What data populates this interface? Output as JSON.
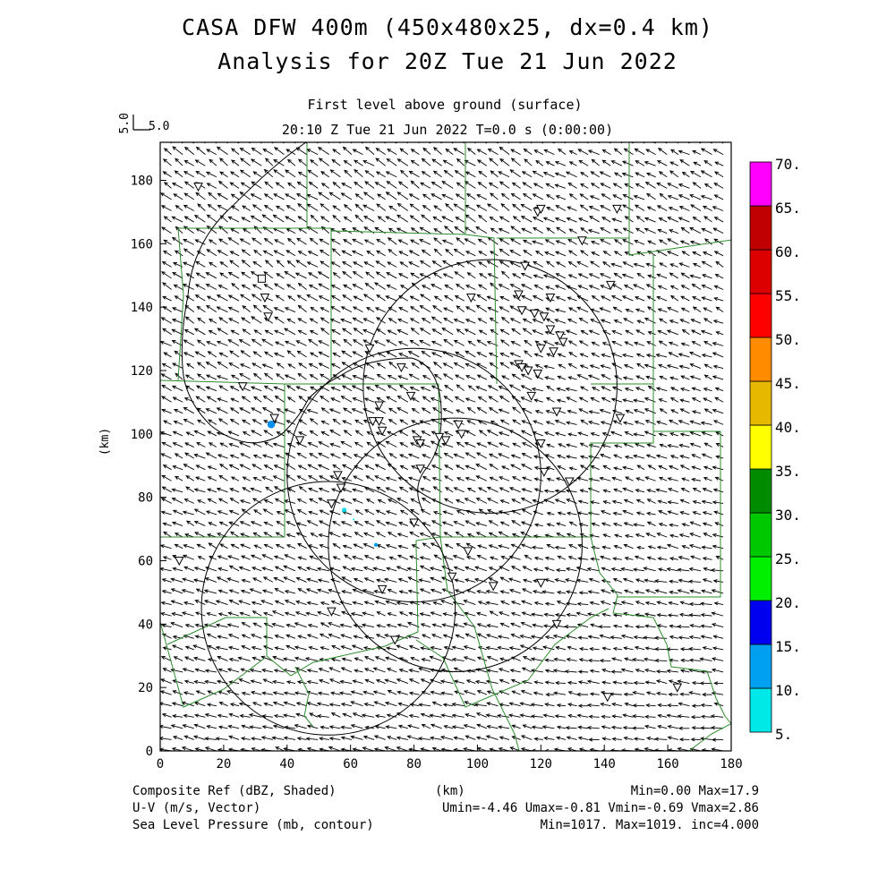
{
  "title_line1": "CASA DFW 400m (450x480x25, dx=0.4 km)",
  "title_line2": "Analysis for 20Z Tue 21 Jun 2022",
  "subtitle_line1": "First level above ground (surface)",
  "subtitle_line2": "20:10 Z Tue 21 Jun 2022    T=0.0 s (0:00:00)",
  "ref_vector": {
    "label_vertical": "5.0",
    "label": "5.0"
  },
  "axes": {
    "x_ticks": [
      "0",
      "20",
      "40",
      "60",
      "80",
      "100",
      "120",
      "140",
      "160",
      "180"
    ],
    "y_ticks": [
      "0",
      "20",
      "40",
      "60",
      "80",
      "100",
      "120",
      "140",
      "160",
      "180"
    ],
    "x_label": "(km)",
    "y_label": "(km)",
    "xlim": [
      0,
      180
    ],
    "ylim": [
      0,
      192
    ]
  },
  "colorbar": {
    "labels": [
      "5.",
      "10.",
      "15.",
      "20.",
      "25.",
      "30.",
      "35.",
      "40.",
      "45.",
      "50.",
      "55.",
      "60.",
      "65.",
      "70."
    ],
    "colors": [
      "#00e8e8",
      "#00a0f0",
      "#0000f0",
      "#00f000",
      "#00c800",
      "#008c00",
      "#ffff00",
      "#e6b800",
      "#ff8c00",
      "#ff0000",
      "#dd0000",
      "#c00000",
      "#ff00ff"
    ]
  },
  "footer": {
    "left1": "Composite Ref (dBZ, Shaded)",
    "left2": "U-V (m/s, Vector)",
    "left3": "Sea Level Pressure (mb, contour)",
    "center": "(km)",
    "right1": "Min=0.00 Max=17.9",
    "right2": "Umin=-4.46 Umax=-0.81 Vmin=-0.69 Vmax=2.86",
    "right3": "Min=1017. Max=1019. inc=4.000"
  },
  "chart_data": {
    "type": "map",
    "radar_rings_km": [
      {
        "cx": 80,
        "cy": 87,
        "r": 40
      },
      {
        "cx": 104,
        "cy": 115,
        "r": 40
      },
      {
        "cx": 93,
        "cy": 65,
        "r": 40
      },
      {
        "cx": 53,
        "cy": 45,
        "r": 40
      }
    ],
    "reflectivity_echoes_km": [
      {
        "x": 35,
        "y": 103,
        "r": 1.2,
        "color": "#0090f0"
      },
      {
        "x": 58,
        "y": 76,
        "r": 0.7,
        "color": "#00d8e8"
      },
      {
        "x": 68,
        "y": 65,
        "r": 0.6,
        "color": "#00a0f0"
      },
      {
        "x": 61,
        "y": 73,
        "r": 0.3,
        "color": "#00e8e8"
      }
    ],
    "stations_km": [
      [
        12,
        178
      ],
      [
        119,
        170
      ],
      [
        120,
        171
      ],
      [
        144,
        171
      ],
      [
        133,
        161
      ],
      [
        142,
        147
      ],
      [
        33,
        143
      ],
      [
        34,
        137
      ],
      [
        115,
        153
      ],
      [
        98,
        143
      ],
      [
        113,
        144
      ],
      [
        123,
        143
      ],
      [
        114,
        139
      ],
      [
        118,
        138
      ],
      [
        121,
        137
      ],
      [
        123,
        133
      ],
      [
        126,
        131
      ],
      [
        127,
        129
      ],
      [
        120,
        127
      ],
      [
        124,
        126
      ],
      [
        66,
        127
      ],
      [
        76,
        121
      ],
      [
        113,
        122
      ],
      [
        114,
        121
      ],
      [
        116,
        120
      ],
      [
        119,
        119
      ],
      [
        79,
        112
      ],
      [
        117,
        112
      ],
      [
        26,
        115
      ],
      [
        36,
        105
      ],
      [
        69,
        109
      ],
      [
        67,
        104
      ],
      [
        69,
        104
      ],
      [
        70,
        101
      ],
      [
        125,
        107
      ],
      [
        145,
        105
      ],
      [
        88,
        99
      ],
      [
        94,
        103
      ],
      [
        95,
        100
      ],
      [
        90,
        98
      ],
      [
        81,
        98
      ],
      [
        82,
        97
      ],
      [
        44,
        98
      ],
      [
        120,
        97
      ],
      [
        121,
        88
      ],
      [
        129,
        85
      ],
      [
        56,
        87
      ],
      [
        57,
        83
      ],
      [
        82,
        89
      ],
      [
        54,
        78
      ],
      [
        80,
        72
      ],
      [
        6,
        60
      ],
      [
        97,
        63
      ],
      [
        92,
        55
      ],
      [
        120,
        53
      ],
      [
        105,
        52
      ],
      [
        70,
        51
      ],
      [
        54,
        44
      ],
      [
        125,
        40
      ],
      [
        74,
        35
      ],
      [
        141,
        17
      ],
      [
        163,
        20
      ]
    ],
    "square_station_km": [
      32,
      149
    ]
  }
}
